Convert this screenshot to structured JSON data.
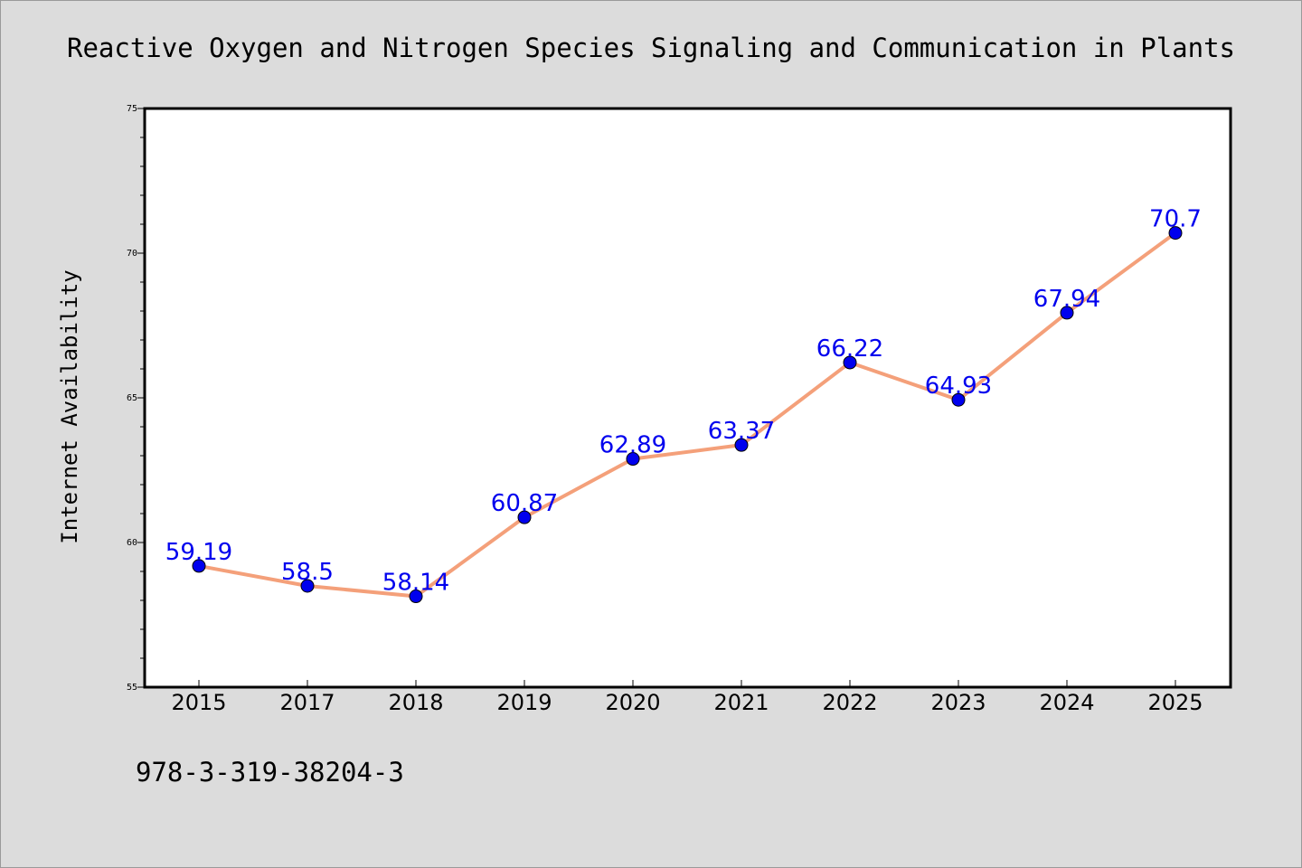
{
  "chart_data": {
    "type": "line",
    "title": "Reactive Oxygen and Nitrogen Species Signaling and Communication in Plants",
    "xlabel": "",
    "ylabel": "Internet Availability",
    "categories": [
      "2015",
      "2017",
      "2018",
      "2019",
      "2020",
      "2021",
      "2022",
      "2023",
      "2024",
      "2025"
    ],
    "series": [
      {
        "values": [
          59.19,
          58.5,
          58.14,
          60.87,
          62.89,
          63.37,
          66.22,
          64.93,
          67.94,
          70.7
        ],
        "labels": [
          "59.19",
          "58.5",
          "58.14",
          "60.87",
          "62.89",
          "63.37",
          "66.22",
          "64.93",
          "67.94",
          "70.7"
        ]
      }
    ],
    "ylim": [
      55,
      75
    ],
    "yticks": [
      "55",
      "60",
      "65",
      "70",
      "75"
    ],
    "grid": false,
    "line_color": "#f4a07a",
    "marker_color": "#0000ee",
    "label_color": "#0000ee",
    "plot_background": "#ffffff",
    "background": "#dcdcdc"
  },
  "footer_text": "978-3-319-38204-3"
}
